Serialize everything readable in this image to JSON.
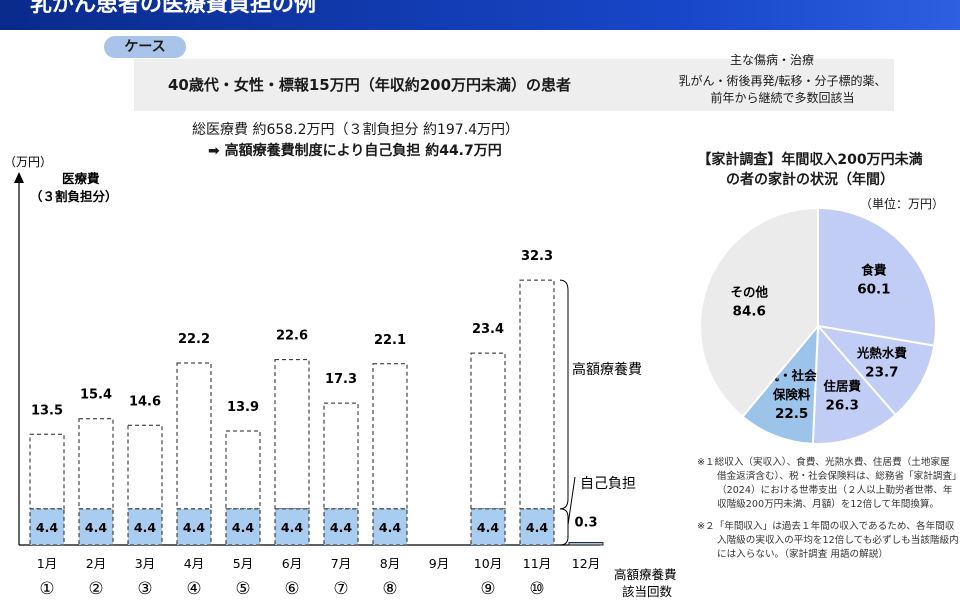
{
  "header": {
    "title": "乳がん患者の医療費負担の例"
  },
  "case": {
    "tag": "ケース",
    "description": "40歳代・女性・標報15万円（年収約200万円未満）の患者",
    "injury_title": "主な傷病・治療",
    "injury_line1": "乳がん・術後再発/転移・分子標的薬、",
    "injury_line2": "前年から継続で多数回該当"
  },
  "summary": {
    "total": "総医療費 約658.2万円（３割負担分 約197.4万円）",
    "self_pay": "➡ 高額療養費制度により自己負担 約44.7万円"
  },
  "chart_data": [
    {
      "type": "bar",
      "y_unit": "（万円）",
      "ylabel_line1": "医療費",
      "ylabel_line2": "（３割負担分）",
      "xlabel_line1": "高額療養費",
      "xlabel_line2": "該当回数",
      "categories": [
        "1月",
        "2月",
        "3月",
        "4月",
        "5月",
        "6月",
        "7月",
        "8月",
        "9月",
        "10月",
        "11月",
        "12月"
      ],
      "count_markers": [
        "①",
        "②",
        "③",
        "④",
        "⑤",
        "⑥",
        "⑦",
        "⑧",
        "",
        "⑨",
        "⑩",
        ""
      ],
      "series": [
        {
          "name": "自己負担",
          "values": [
            4.4,
            4.4,
            4.4,
            4.4,
            4.4,
            4.4,
            4.4,
            4.4,
            null,
            4.4,
            4.4,
            0.3
          ]
        },
        {
          "name": "高額療養費",
          "values": [
            9.1,
            11.0,
            10.2,
            17.8,
            9.5,
            18.2,
            12.9,
            17.7,
            null,
            19.0,
            27.9,
            0
          ]
        }
      ],
      "totals": [
        13.5,
        15.4,
        14.6,
        22.2,
        13.9,
        22.6,
        17.3,
        22.1,
        null,
        23.4,
        32.3,
        0.3
      ],
      "total_labels": [
        "13.5",
        "15.4",
        "14.6",
        "22.2",
        "13.9",
        "22.6",
        "17.3",
        "22.1",
        "",
        "23.4",
        "32.3",
        ""
      ],
      "self_labels": [
        "4.4",
        "4.4",
        "4.4",
        "4.4",
        "4.4",
        "4.4",
        "4.4",
        "4.4",
        "",
        "4.4",
        "4.4",
        "0.3"
      ],
      "ylim": [
        0,
        35
      ],
      "colors": {
        "self": "#a9cdf0",
        "border": "#222222"
      }
    },
    {
      "type": "pie",
      "title_line1": "【家計調査】年間収入200万円未満",
      "title_line2": "の者の家計の状況（年間）",
      "unit": "（単位：万円）",
      "slices": [
        {
          "label_lines": [
            "食費"
          ],
          "value": 60.1,
          "value_text": "60.1",
          "color": "#c2cdf6"
        },
        {
          "label_lines": [
            "光熱水費"
          ],
          "value": 23.7,
          "value_text": "23.7",
          "color": "#c2cdf6"
        },
        {
          "label_lines": [
            "住居費"
          ],
          "value": 26.3,
          "value_text": "26.3",
          "color": "#c2cdf6"
        },
        {
          "label_lines": [
            "税・社会",
            "保険料"
          ],
          "value": 22.5,
          "value_text": "22.5",
          "color": "#9cc3ea"
        },
        {
          "label_lines": [
            "その他"
          ],
          "value": 84.6,
          "value_text": "84.6",
          "color": "#ebebeb"
        }
      ]
    }
  ],
  "notes": {
    "note1": "※１総収入（実収入）、食費、光熱水費、住居費（土地家屋借金返済含む）、税・社会保険料は、総務省「家計調査」（2024）における世帯支出（２人以上勤労者世帯、年収階級200万円未満、月額）を12倍して年間換算。",
    "note2": "※２「年間収入」は過去１年間の収入であるため、各年間収入階級の実収入の平均を12倍しても必ずしも当該階級内には入らない。（家計調査 用語の解説）"
  }
}
